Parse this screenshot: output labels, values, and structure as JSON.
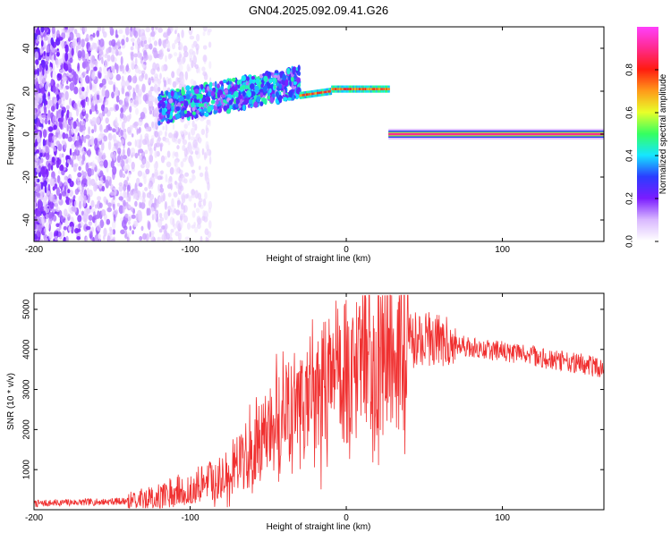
{
  "title": "GN04.2025.092.09.41.G26",
  "chart_data": [
    {
      "type": "heatmap",
      "title": "GN04.2025.092.09.41.G26",
      "xlabel": "Height of straight line (km)",
      "ylabel": "Frequency (Hz)",
      "xlim": [
        -200,
        165
      ],
      "ylim": [
        -50,
        50
      ],
      "xticks": [
        -200,
        -100,
        0,
        100
      ],
      "yticks": [
        -40,
        -20,
        0,
        20,
        40
      ],
      "grid": false,
      "colorbar": {
        "label": "Normalized spectral amplitude",
        "range": [
          0,
          1
        ],
        "ticks": [
          0.0,
          0.2,
          0.4,
          0.6,
          0.8
        ],
        "colormap": [
          "#ffffff",
          "#d9b8ff",
          "#7a1cff",
          "#2b3dff",
          "#15e6ff",
          "#35ff60",
          "#e8ff2a",
          "#ff9a1a",
          "#ff1c10",
          "#ff2a90",
          "#ff40ff"
        ]
      },
      "features": [
        {
          "name": "noise",
          "x_range": [
            -200,
            -95
          ],
          "freq_range": [
            -50,
            50
          ],
          "amplitude": 0.15
        },
        {
          "name": "signal-broad",
          "x_range": [
            -120,
            -30
          ],
          "freq_range": [
            8,
            32
          ],
          "amplitude": 0.3
        },
        {
          "name": "signal-line-1",
          "x_range": [
            -30,
            27
          ],
          "freq": [
            18,
            22
          ],
          "amplitude": 0.75
        },
        {
          "name": "signal-line-2",
          "x_range": [
            27,
            165
          ],
          "freq": 0,
          "amplitude": 0.9
        }
      ]
    },
    {
      "type": "line",
      "xlabel": "Height of straight line (km)",
      "ylabel": "SNR (10 * v/v)",
      "xlim": [
        -200,
        165
      ],
      "ylim": [
        0,
        5400
      ],
      "xticks": [
        -200,
        -100,
        0,
        100
      ],
      "yticks": [
        1000,
        2000,
        3000,
        4000,
        5000
      ],
      "grid": false,
      "color": "#f03030",
      "series": [
        {
          "x": [
            -200,
            -180,
            -160,
            -140,
            -120,
            -100,
            -90,
            -80,
            -70,
            -60,
            -50,
            -40,
            -30,
            -20,
            -10,
            0,
            10,
            20,
            30,
            40,
            50,
            60,
            70,
            80,
            90,
            100,
            110,
            120,
            130,
            140,
            150,
            160,
            165
          ],
          "values": [
            150,
            180,
            190,
            220,
            320,
            550,
            700,
            900,
            1150,
            1500,
            1900,
            2300,
            2700,
            3000,
            3250,
            3500,
            3750,
            3950,
            4100,
            4200,
            4300,
            4250,
            4150,
            4050,
            4000,
            3950,
            3900,
            3850,
            3750,
            3700,
            3650,
            3550,
            3500
          ]
        }
      ]
    }
  ]
}
